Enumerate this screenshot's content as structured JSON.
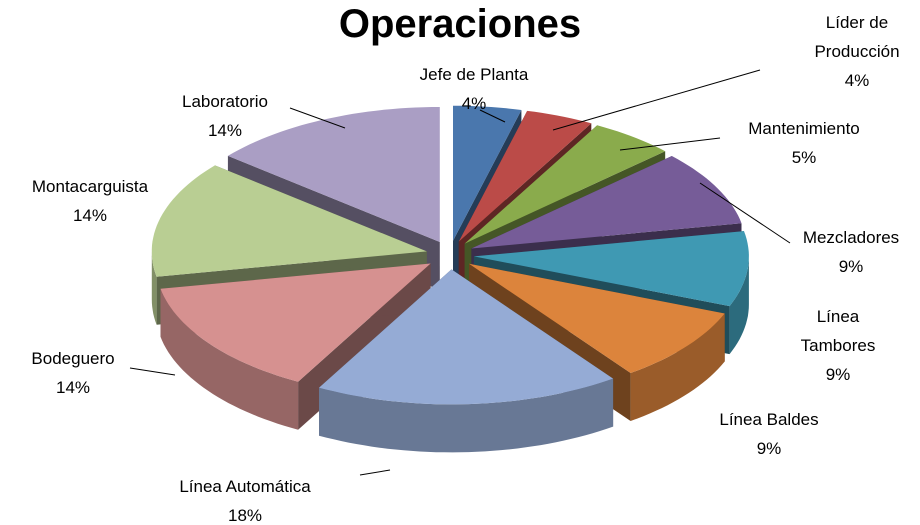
{
  "chart_data": {
    "type": "pie3d",
    "title": "Operaciones",
    "categories": [
      "Jefe de Planta",
      "Líder de Producción",
      "Mantenimiento",
      "Mezcladores",
      "Línea Tambores",
      "Línea Baldes",
      "Línea Automática",
      "Bodeguero",
      "Montacarguista",
      "Laboratorio"
    ],
    "values": [
      4,
      4,
      5,
      9,
      9,
      9,
      18,
      14,
      14,
      14
    ],
    "value_labels": [
      "4%",
      "4%",
      "5%",
      "9%",
      "9%",
      "9%",
      "18%",
      "14%",
      "14%",
      "14%"
    ],
    "colors": [
      "#4a77ad",
      "#bb4b48",
      "#8aab4c",
      "#765c98",
      "#3f99b3",
      "#dc843c",
      "#95abd5",
      "#d69190",
      "#b9ce93",
      "#aa9ec4"
    ]
  }
}
